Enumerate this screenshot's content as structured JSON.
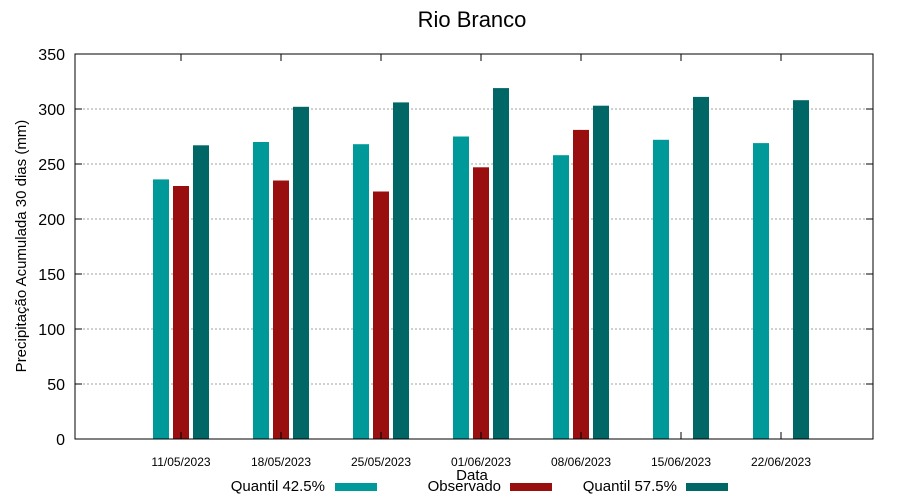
{
  "chart_data": {
    "type": "bar",
    "title": "Rio Branco",
    "xlabel": "Data",
    "ylabel": "Precipitação Acumulada 30 dias (mm)",
    "ylim": [
      0,
      350
    ],
    "yticks": [
      0,
      50,
      100,
      150,
      200,
      250,
      300,
      350
    ],
    "grid": true,
    "legend_position": "bottom",
    "categories": [
      "11/05/2023",
      "18/05/2023",
      "25/05/2023",
      "01/06/2023",
      "08/06/2023",
      "15/06/2023",
      "22/06/2023"
    ],
    "series": [
      {
        "name": "Quantil 42.5%",
        "color": "#009999",
        "values": [
          236,
          270,
          268,
          275,
          258,
          272,
          269
        ]
      },
      {
        "name": "Observado",
        "color": "#990f0f",
        "values": [
          230,
          235,
          225,
          247,
          281,
          null,
          null
        ]
      },
      {
        "name": "Quantil 57.5%",
        "color": "#006666",
        "values": [
          267,
          302,
          306,
          319,
          303,
          311,
          308
        ]
      }
    ]
  }
}
